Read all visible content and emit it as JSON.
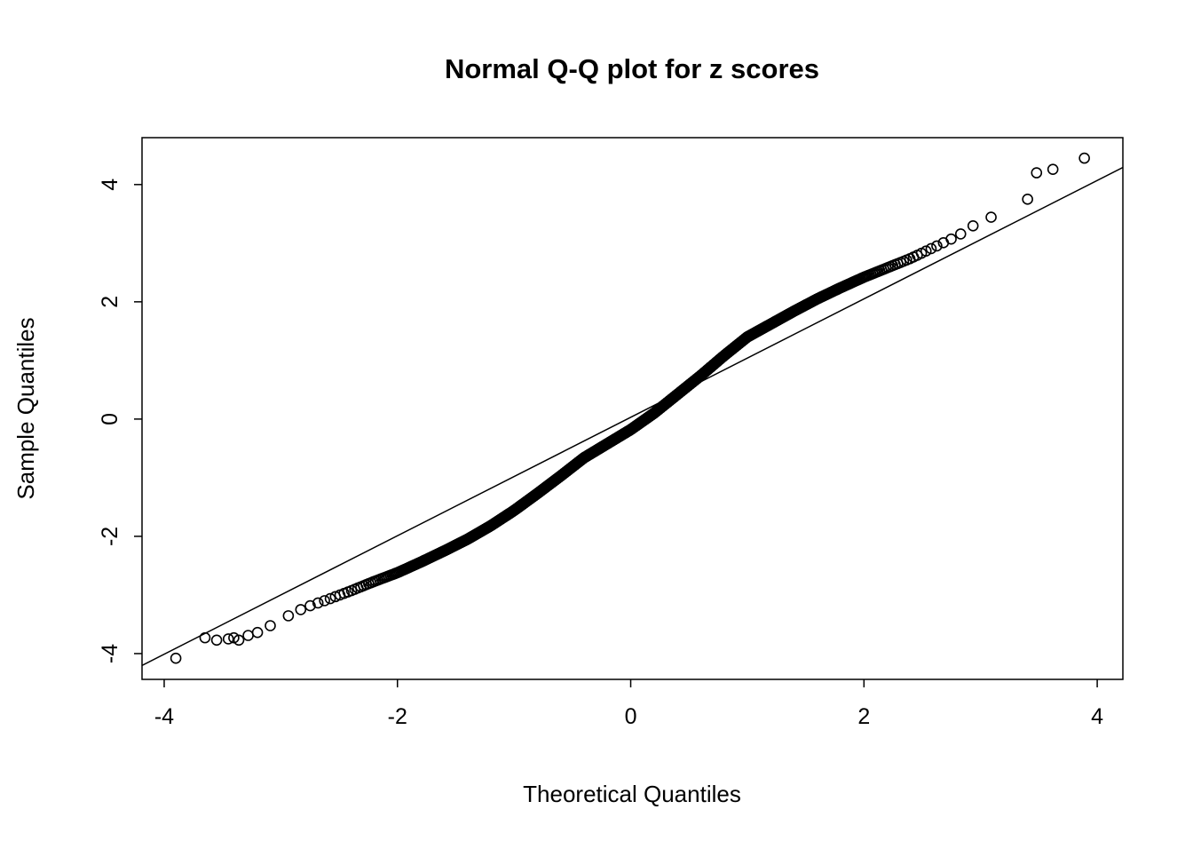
{
  "figure": {
    "background": "#ffffff",
    "foreground": "#000000"
  },
  "chart_data": {
    "type": "scatter",
    "title": "Normal Q-Q plot for z scores",
    "xlabel": "Theoretical Quantiles",
    "ylabel": "Sample Quantiles",
    "xlim": [
      -4.19,
      4.22
    ],
    "ylim": [
      -4.44,
      4.8
    ],
    "x_ticks": [
      -4,
      -2,
      0,
      2,
      4
    ],
    "y_ticks": [
      -4,
      -2,
      0,
      2,
      4
    ],
    "grid": false,
    "legend": "none",
    "marker": {
      "shape": "open-circle",
      "radius": 5.5,
      "stroke": "#000000",
      "stroke_width": 1.6
    },
    "n_points": 1500,
    "reference_line": {
      "slope": 1.01,
      "intercept": 0.03,
      "color": "#000000"
    },
    "curve": [
      [
        -3.9,
        -4.08
      ],
      [
        -3.5,
        -3.77
      ],
      [
        -3.2,
        -3.65
      ],
      [
        -3.0,
        -3.42
      ],
      [
        -2.8,
        -3.22
      ],
      [
        -2.6,
        -3.08
      ],
      [
        -2.4,
        -2.93
      ],
      [
        -2.2,
        -2.77
      ],
      [
        -2.0,
        -2.62
      ],
      [
        -1.8,
        -2.44
      ],
      [
        -1.6,
        -2.25
      ],
      [
        -1.4,
        -2.05
      ],
      [
        -1.2,
        -1.82
      ],
      [
        -1.0,
        -1.56
      ],
      [
        -0.8,
        -1.27
      ],
      [
        -0.6,
        -0.97
      ],
      [
        -0.4,
        -0.66
      ],
      [
        -0.2,
        -0.42
      ],
      [
        0.0,
        -0.18
      ],
      [
        0.2,
        0.1
      ],
      [
        0.4,
        0.42
      ],
      [
        0.6,
        0.74
      ],
      [
        0.8,
        1.08
      ],
      [
        1.0,
        1.4
      ],
      [
        1.2,
        1.62
      ],
      [
        1.4,
        1.84
      ],
      [
        1.6,
        2.05
      ],
      [
        1.8,
        2.24
      ],
      [
        2.0,
        2.42
      ],
      [
        2.2,
        2.58
      ],
      [
        2.4,
        2.74
      ],
      [
        2.6,
        2.93
      ],
      [
        2.8,
        3.12
      ],
      [
        3.0,
        3.38
      ],
      [
        3.2,
        3.52
      ],
      [
        3.4,
        3.75
      ]
    ],
    "extra_points": [
      [
        -3.9,
        -4.08
      ],
      [
        -3.65,
        -3.73
      ],
      [
        -3.55,
        -3.77
      ],
      [
        -3.45,
        -3.75
      ],
      [
        -3.36,
        -3.77
      ],
      [
        -3.28,
        -3.69
      ],
      [
        -3.2,
        -3.64
      ],
      [
        3.48,
        4.2
      ],
      [
        3.62,
        4.26
      ],
      [
        3.89,
        4.45
      ]
    ]
  }
}
